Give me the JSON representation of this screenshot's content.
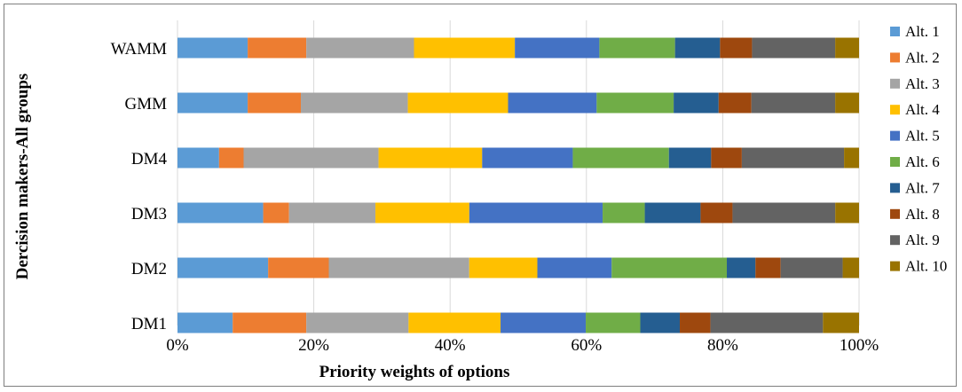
{
  "chart_data": {
    "type": "bar",
    "orientation": "horizontal",
    "stacked": "percent",
    "categories": [
      "WAMM",
      "GMM",
      "DM4",
      "DM3",
      "DM2",
      "DM1"
    ],
    "xlabel": "Priority weights of options",
    "ylabel": "Dercision makers-All groups",
    "xlim": [
      0,
      100
    ],
    "xticks": [
      "0%",
      "20%",
      "40%",
      "60%",
      "80%",
      "100%"
    ],
    "grid": true,
    "legend_position": "right",
    "series": [
      {
        "name": "Alt. 1",
        "color": "#5b9bd5",
        "values": [
          10.3,
          10.3,
          6.1,
          12.6,
          13.3,
          8.1
        ]
      },
      {
        "name": "Alt. 2",
        "color": "#ed7d31",
        "values": [
          8.6,
          7.8,
          3.6,
          3.8,
          8.9,
          10.8
        ]
      },
      {
        "name": "Alt. 3",
        "color": "#a5a5a5",
        "values": [
          15.8,
          15.7,
          19.8,
          12.7,
          20.6,
          15.0
        ]
      },
      {
        "name": "Alt. 4",
        "color": "#ffc000",
        "values": [
          14.8,
          14.7,
          15.2,
          13.8,
          10.0,
          13.5
        ]
      },
      {
        "name": "Alt. 5",
        "color": "#4472c4",
        "values": [
          12.4,
          13.0,
          13.3,
          19.6,
          10.9,
          12.5
        ]
      },
      {
        "name": "Alt. 6",
        "color": "#70ad47",
        "values": [
          11.1,
          11.3,
          14.1,
          6.2,
          16.9,
          8.0
        ]
      },
      {
        "name": "Alt. 7",
        "color": "#255e91",
        "values": [
          6.6,
          6.6,
          6.2,
          8.2,
          4.2,
          5.8
        ]
      },
      {
        "name": "Alt. 8",
        "color": "#9e480e",
        "values": [
          4.7,
          4.8,
          4.5,
          4.7,
          3.7,
          4.5
        ]
      },
      {
        "name": "Alt. 9",
        "color": "#636363",
        "values": [
          12.2,
          12.3,
          15.0,
          15.1,
          9.1,
          16.5
        ]
      },
      {
        "name": "Alt. 10",
        "color": "#997300",
        "values": [
          3.5,
          3.5,
          2.2,
          3.5,
          2.4,
          5.3
        ]
      }
    ]
  }
}
